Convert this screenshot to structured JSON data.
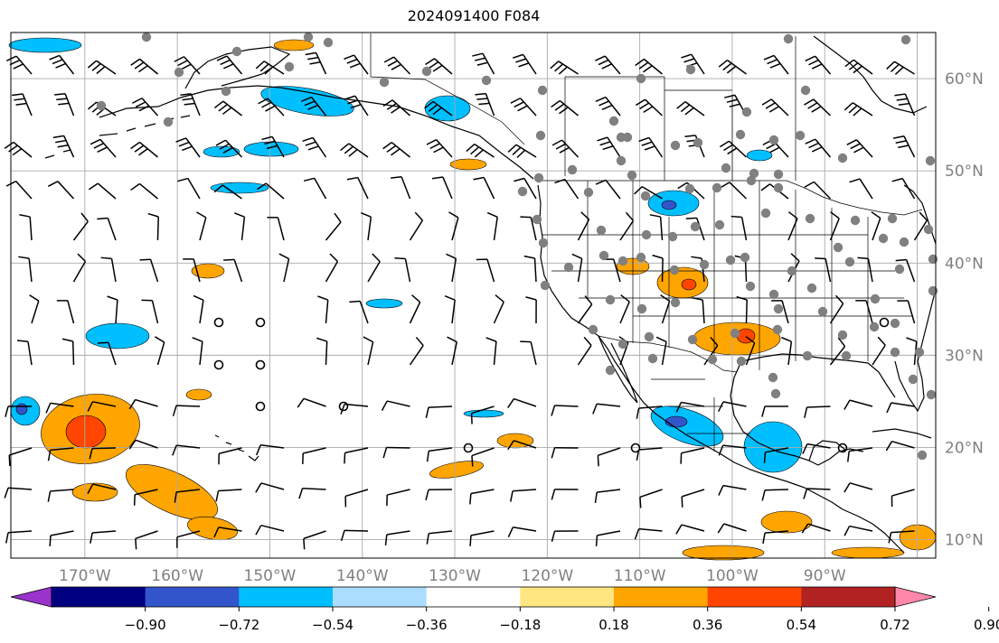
{
  "title": "2024091400 F084",
  "map": {
    "lon_labels": [
      "170°W",
      "160°W",
      "150°W",
      "140°W",
      "130°W",
      "120°W",
      "110°W",
      "100°W",
      "90°W"
    ],
    "lat_labels": [
      "60°N",
      "50°N",
      "40°N",
      "30°N",
      "20°N",
      "10°N"
    ],
    "lon_range": [
      -178,
      -78
    ],
    "lat_range": [
      8,
      65
    ]
  },
  "colorbar": {
    "tick_labels": [
      "−0.90",
      "−0.72",
      "−0.54",
      "−0.36",
      "−0.18",
      "0.18",
      "0.36",
      "0.54",
      "0.72",
      "0.90"
    ],
    "colors": [
      "#9933cc",
      "#000080",
      "#3355cc",
      "#00bfff",
      "#aaddff",
      "#ffffff",
      "#ffe680",
      "#ffa500",
      "#ff4500",
      "#b22222",
      "#ff88aa"
    ]
  },
  "legend_colors": {
    "positive_fill": "#ffa500",
    "positive_core": "#ff4500",
    "negative_fill": "#00bfff",
    "negative_core": "#3355cc",
    "gridline": "#aaaaaa",
    "station": "#808080"
  }
}
